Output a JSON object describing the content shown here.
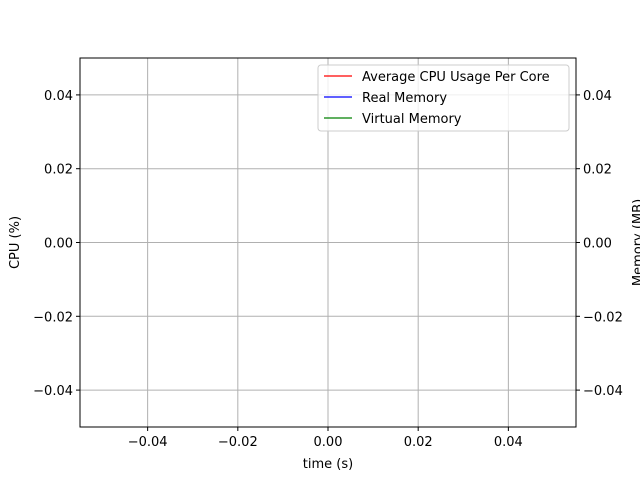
{
  "chart_data": {
    "type": "line",
    "xlabel": "time (s)",
    "ylabel": "CPU (%)",
    "y2label": "Memory (MB)",
    "xlim": [
      -0.055,
      0.055
    ],
    "ylim": [
      -0.05,
      0.05
    ],
    "y2lim": [
      -0.05,
      0.05
    ],
    "x_ticks": [
      -0.04,
      -0.02,
      0.0,
      0.02,
      0.04
    ],
    "x_tick_labels": [
      "−0.04",
      "−0.02",
      "0.00",
      "0.02",
      "0.04"
    ],
    "y_ticks": [
      -0.04,
      -0.02,
      0.0,
      0.02,
      0.04
    ],
    "y_tick_labels": [
      "−0.04",
      "−0.02",
      "0.00",
      "0.02",
      "0.04"
    ],
    "y2_ticks": [
      -0.04,
      -0.02,
      0.0,
      0.02,
      0.04
    ],
    "y2_tick_labels": [
      "−0.04",
      "−0.02",
      "0.00",
      "0.02",
      "0.04"
    ],
    "grid": true,
    "legend_position": "top-right",
    "series": [
      {
        "name": "Average CPU Usage Per Core",
        "color": "#ff0000",
        "axis": "left",
        "x": [],
        "y": []
      },
      {
        "name": "Real Memory",
        "color": "#0000ff",
        "axis": "right",
        "x": [],
        "y": []
      },
      {
        "name": "Virtual Memory",
        "color": "#008000",
        "axis": "right",
        "x": [],
        "y": []
      }
    ]
  }
}
